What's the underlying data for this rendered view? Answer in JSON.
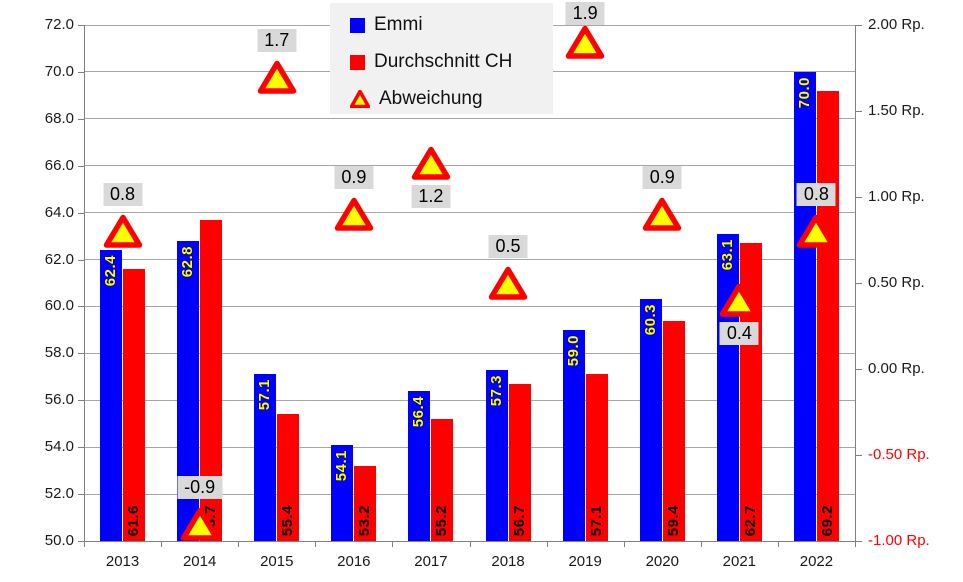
{
  "chart_data": {
    "type": "bar",
    "title": "",
    "categories": [
      "2013",
      "2014",
      "2015",
      "2016",
      "2017",
      "2018",
      "2019",
      "2020",
      "2021",
      "2022"
    ],
    "series": [
      {
        "name": "Emmi",
        "marker": "square",
        "color": "#0000ff",
        "axis": "left",
        "values": [
          62.4,
          62.8,
          57.1,
          54.1,
          56.4,
          57.3,
          59.0,
          60.3,
          63.1,
          70.0
        ],
        "labels": [
          "62.4",
          "62.8",
          "57.1",
          "54.1",
          "56.4",
          "57.3",
          "59.0",
          "60.3",
          "63.1",
          "70.0"
        ],
        "label_color": "#ffff00"
      },
      {
        "name": "Durchschnitt CH",
        "marker": "square",
        "color": "#ff0000",
        "axis": "left",
        "values": [
          61.6,
          63.7,
          55.4,
          53.2,
          55.2,
          56.7,
          57.1,
          59.4,
          62.7,
          69.2
        ],
        "labels": [
          "61.6",
          "63.7",
          "55.4",
          "53.2",
          "55.2",
          "56.7",
          "57.1",
          "59.4",
          "62.7",
          "69.2"
        ],
        "label_color": "#000000"
      },
      {
        "name": "Abweichung",
        "marker": "triangle",
        "color": "#ff0000",
        "fill": "#ffff00",
        "axis": "right",
        "values": [
          0.8,
          -0.9,
          1.7,
          0.9,
          1.2,
          0.5,
          1.9,
          0.9,
          0.4,
          0.8
        ],
        "labels": [
          "0.8",
          "-0.9",
          "1.7",
          "0.9",
          "1.2",
          "0.5",
          "1.9",
          "0.9",
          "0.4",
          "0.8"
        ],
        "label_side": [
          "above",
          "above",
          "above",
          "above",
          "below",
          "above",
          "above",
          "above",
          "below",
          "above"
        ],
        "label_bg": "#d9d9d9"
      }
    ],
    "left_axis": {
      "min": 50.0,
      "max": 72.0,
      "step": 2.0,
      "tick_labels": [
        "72.0",
        "70.0",
        "68.0",
        "66.0",
        "64.0",
        "62.0",
        "60.0",
        "58.0",
        "56.0",
        "54.0",
        "52.0",
        "50.0"
      ]
    },
    "right_axis": {
      "min": -1.0,
      "max": 2.0,
      "step": 0.5,
      "tick_labels": [
        "2.00 Rp.",
        "1.50 Rp.",
        "1.00 Rp.",
        "0.50 Rp.",
        "0.00 Rp.",
        "-0.50 Rp.",
        "-1.00 Rp."
      ],
      "negative_color": "#ff0000"
    },
    "legend": {
      "position": "top-center",
      "items": [
        {
          "label": "Emmi",
          "marker": "square",
          "color": "#0000ff"
        },
        {
          "label": "Durchschnitt CH",
          "marker": "square",
          "color": "#ff0000"
        },
        {
          "label": "Abweichung",
          "marker": "triangle",
          "color": "#ff0000",
          "fill": "#ffff00"
        }
      ]
    },
    "grid": true,
    "colors": {
      "gridline": "#a6a6a6",
      "axis": "#808080",
      "label_box": "#d9d9d9",
      "legend_bg": "#f1f1f1"
    }
  }
}
